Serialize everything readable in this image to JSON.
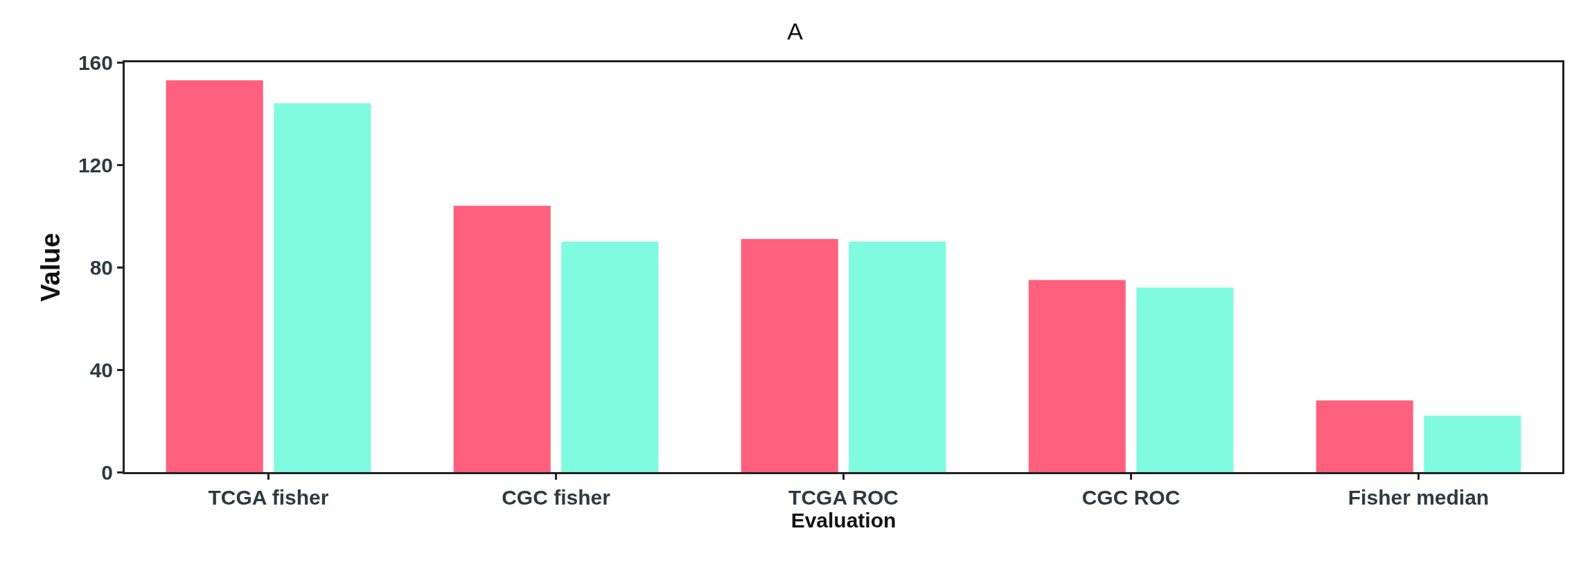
{
  "chart_data": {
    "type": "bar",
    "title": "A",
    "xlabel": "Evaluation",
    "ylabel": "Value",
    "categories": [
      "TCGA fisher",
      "CGC fisher",
      "TCGA ROC",
      "CGC ROC",
      "Fisher median"
    ],
    "series": [
      {
        "color": "#fe607e",
        "values": [
          153,
          104,
          91,
          75,
          28
        ]
      },
      {
        "color": "#80fbdf",
        "values": [
          144,
          90,
          90,
          72,
          22
        ]
      }
    ],
    "ylim": [
      0,
      160
    ],
    "yticks": [
      0,
      40,
      80,
      120,
      160
    ]
  }
}
